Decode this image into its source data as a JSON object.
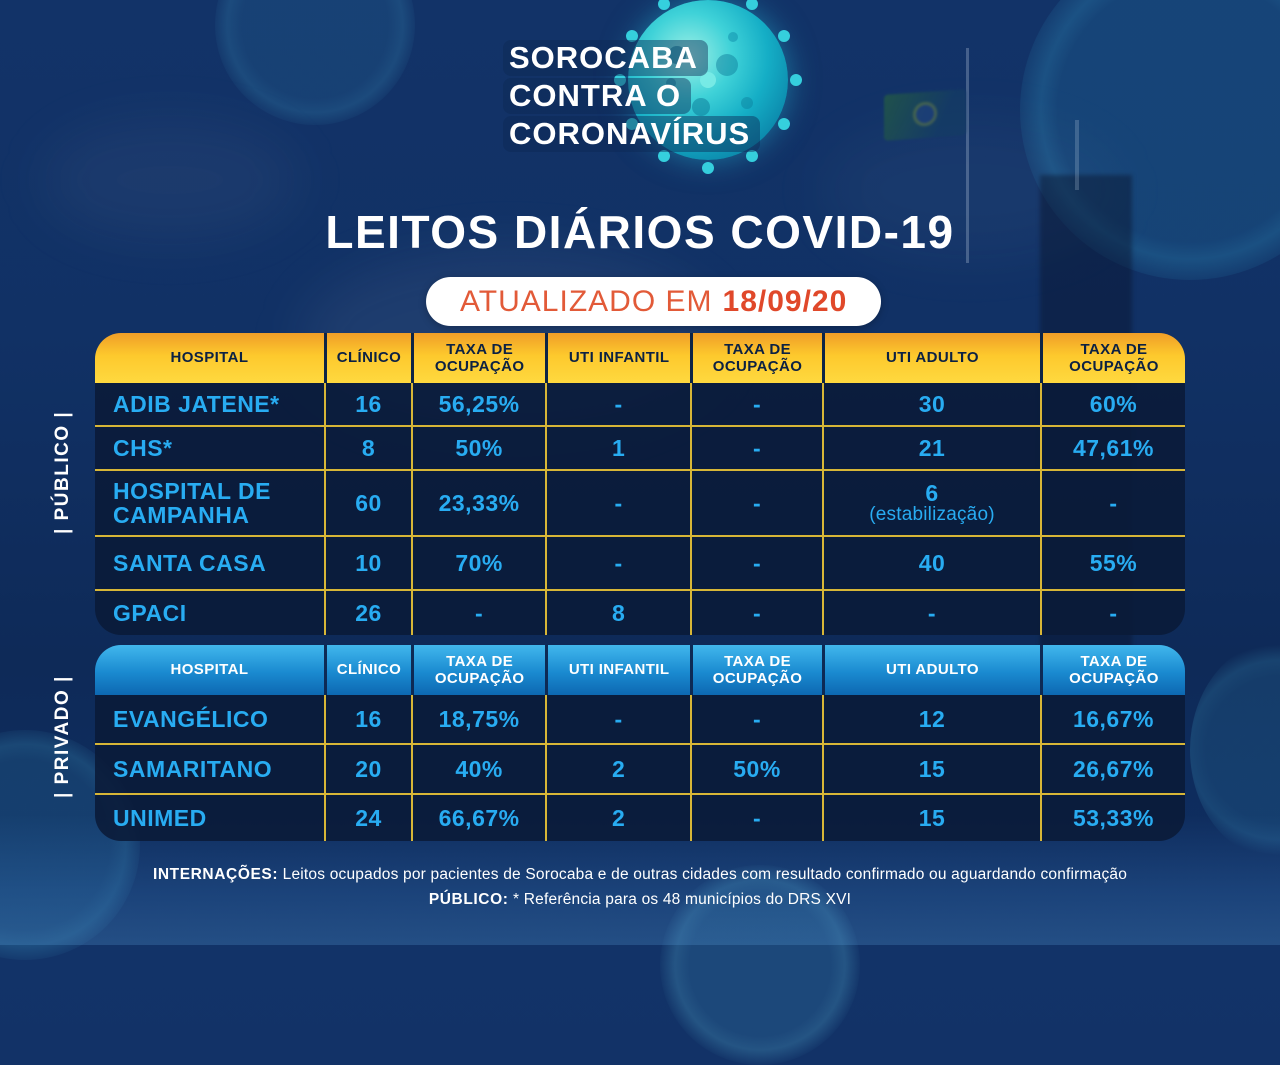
{
  "logo": {
    "line1": "SOROCABA",
    "line2": "CONTRA O",
    "line3": "CORONAVÍRUS"
  },
  "title": "LEITOS DIÁRIOS COVID-19",
  "updated": {
    "prefix": "ATUALIZADO EM",
    "date": "18/09/20"
  },
  "colors": {
    "background_navy": "#0f2f63",
    "public_header_yellow": "#ffd93f",
    "private_header_blue": "#1a8ad0",
    "grid_yellow": "#d7b637",
    "data_cyan": "#28acf2",
    "badge_orange": "#e0482a"
  },
  "tables": {
    "public": {
      "section_label": "| PÚBLICO |",
      "headers": [
        "HOSPITAL",
        "CLÍNICO",
        "TAXA DE OCUPAÇÃO",
        "UTI INFANTIL",
        "TAXA DE OCUPAÇÃO",
        "UTI ADULTO",
        "TAXA DE OCUPAÇÃO"
      ],
      "rows": [
        {
          "hospital": "ADIB JATENE*",
          "clinico": "16",
          "taxa1": "56,25%",
          "uti_inf": "-",
          "taxa2": "-",
          "uti_adulto": "30",
          "taxa3": "60%"
        },
        {
          "hospital": "CHS*",
          "clinico": "8",
          "taxa1": "50%",
          "uti_inf": "1",
          "taxa2": "-",
          "uti_adulto": "21",
          "taxa3": "47,61%"
        },
        {
          "hospital": "HOSPITAL DE CAMPANHA",
          "clinico": "60",
          "taxa1": "23,33%",
          "uti_inf": "-",
          "taxa2": "-",
          "uti_adulto": "6",
          "uti_adulto_note": "(estabilização)",
          "taxa3": "-"
        },
        {
          "hospital": "SANTA CASA",
          "clinico": "10",
          "taxa1": "70%",
          "uti_inf": "-",
          "taxa2": "-",
          "uti_adulto": "40",
          "taxa3": "55%"
        },
        {
          "hospital": "GPACI",
          "clinico": "26",
          "taxa1": "-",
          "uti_inf": "8",
          "taxa2": "-",
          "uti_adulto": "-",
          "taxa3": "-"
        }
      ]
    },
    "private": {
      "section_label": "| PRIVADO |",
      "headers": [
        "HOSPITAL",
        "CLÍNICO",
        "TAXA DE OCUPAÇÃO",
        "UTI INFANTIL",
        "TAXA DE OCUPAÇÃO",
        "UTI ADULTO",
        "TAXA DE OCUPAÇÃO"
      ],
      "rows": [
        {
          "hospital": "EVANGÉLICO",
          "clinico": "16",
          "taxa1": "18,75%",
          "uti_inf": "-",
          "taxa2": "-",
          "uti_adulto": "12",
          "taxa3": "16,67%"
        },
        {
          "hospital": "SAMARITANO",
          "clinico": "20",
          "taxa1": "40%",
          "uti_inf": "2",
          "taxa2": "50%",
          "uti_adulto": "15",
          "taxa3": "26,67%"
        },
        {
          "hospital": "UNIMED",
          "clinico": "24",
          "taxa1": "66,67%",
          "uti_inf": "2",
          "taxa2": "-",
          "uti_adulto": "15",
          "taxa3": "53,33%"
        }
      ]
    }
  },
  "footer": {
    "line1_label": "INTERNAÇÕES:",
    "line1_text": "Leitos ocupados por pacientes de Sorocaba e de outras cidades com resultado confirmado ou aguardando confirmação",
    "line2_label": "PÚBLICO:",
    "line2_text": "* Referência para os 48 municípios do DRS XVI"
  },
  "chart_data": [
    {
      "type": "table",
      "title": "LEITOS DIÁRIOS COVID-19 — PÚBLICO (atualizado em 18/09/20)",
      "columns": [
        "HOSPITAL",
        "CLÍNICO",
        "TAXA DE OCUPAÇÃO",
        "UTI INFANTIL",
        "TAXA DE OCUPAÇÃO",
        "UTI ADULTO",
        "TAXA DE OCUPAÇÃO"
      ],
      "rows": [
        [
          "ADIB JATENE*",
          "16",
          "56,25%",
          "-",
          "-",
          "30",
          "60%"
        ],
        [
          "CHS*",
          "8",
          "50%",
          "1",
          "-",
          "21",
          "47,61%"
        ],
        [
          "HOSPITAL DE CAMPANHA",
          "60",
          "23,33%",
          "-",
          "-",
          "6 (estabilização)",
          "-"
        ],
        [
          "SANTA CASA",
          "10",
          "70%",
          "-",
          "-",
          "40",
          "55%"
        ],
        [
          "GPACI",
          "26",
          "-",
          "8",
          "-",
          "-",
          "-"
        ]
      ]
    },
    {
      "type": "table",
      "title": "LEITOS DIÁRIOS COVID-19 — PRIVADO (atualizado em 18/09/20)",
      "columns": [
        "HOSPITAL",
        "CLÍNICO",
        "TAXA DE OCUPAÇÃO",
        "UTI INFANTIL",
        "TAXA DE OCUPAÇÃO",
        "UTI ADULTO",
        "TAXA DE OCUPAÇÃO"
      ],
      "rows": [
        [
          "EVANGÉLICO",
          "16",
          "18,75%",
          "-",
          "-",
          "12",
          "16,67%"
        ],
        [
          "SAMARITANO",
          "20",
          "40%",
          "2",
          "50%",
          "15",
          "26,67%"
        ],
        [
          "UNIMED",
          "24",
          "66,67%",
          "2",
          "-",
          "15",
          "53,33%"
        ]
      ]
    }
  ]
}
